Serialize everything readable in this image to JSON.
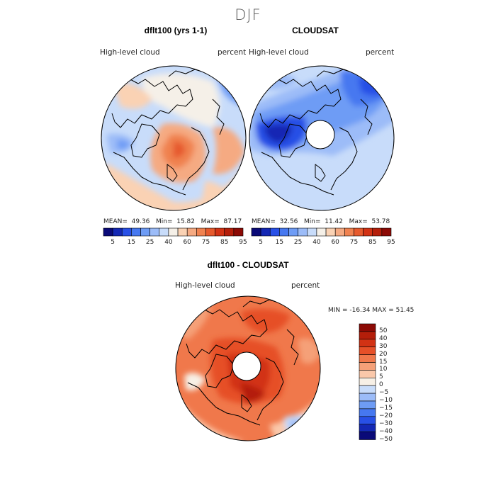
{
  "figure": {
    "suptitle": "DJF"
  },
  "panels": [
    {
      "title": "dflt100 (yrs 1-1)",
      "left_label": "High-level cloud",
      "right_label": "percent",
      "stats": {
        "mean_label": "MEAN=",
        "mean": "49.36",
        "min_label": "Min=",
        "min": "15.82",
        "max_label": "Max=",
        "max": "87.17"
      },
      "colorbar_ticks": [
        "5",
        "15",
        "25",
        "40",
        "60",
        "75",
        "85",
        "95"
      ],
      "has_pole_hole": false
    },
    {
      "title": "CLOUDSAT",
      "left_label": "High-level cloud",
      "right_label": "percent",
      "stats": {
        "mean_label": "MEAN=",
        "mean": "32.56",
        "min_label": "Min=",
        "min": "11.42",
        "max_label": "Max=",
        "max": "53.78"
      },
      "colorbar_ticks": [
        "5",
        "15",
        "25",
        "40",
        "60",
        "75",
        "85",
        "95"
      ],
      "has_pole_hole": true
    }
  ],
  "diff_panel": {
    "title": "dflt100 - CLOUDSAT",
    "left_label": "High-level cloud",
    "right_label": "percent",
    "min_max_text": "MIN = -16.34 MAX =  51.45",
    "colorbar_ticks": [
      "50",
      "40",
      "30",
      "20",
      "15",
      "10",
      "5",
      "0",
      "−5",
      "−10",
      "−15",
      "−20",
      "−30",
      "−40",
      "−50"
    ]
  },
  "colors": {
    "abs_scale": [
      "#0a0a78",
      "#1428b4",
      "#2850e6",
      "#4678f0",
      "#6e9cf5",
      "#9cbcf8",
      "#c8dcfa",
      "#f5f0e8",
      "#fad2b4",
      "#f5aa82",
      "#f08250",
      "#e65a2d",
      "#d23214",
      "#b41e0a",
      "#8c0a05"
    ],
    "diff_scale": [
      "#8c0a05",
      "#b41e0a",
      "#d23214",
      "#e65028",
      "#f0784b",
      "#f5a078",
      "#fac8aa",
      "#f7f0e6",
      "#c8dcfa",
      "#9cbcf8",
      "#6e9cf5",
      "#4678f0",
      "#2850e6",
      "#1428b4",
      "#0a0a78"
    ]
  }
}
